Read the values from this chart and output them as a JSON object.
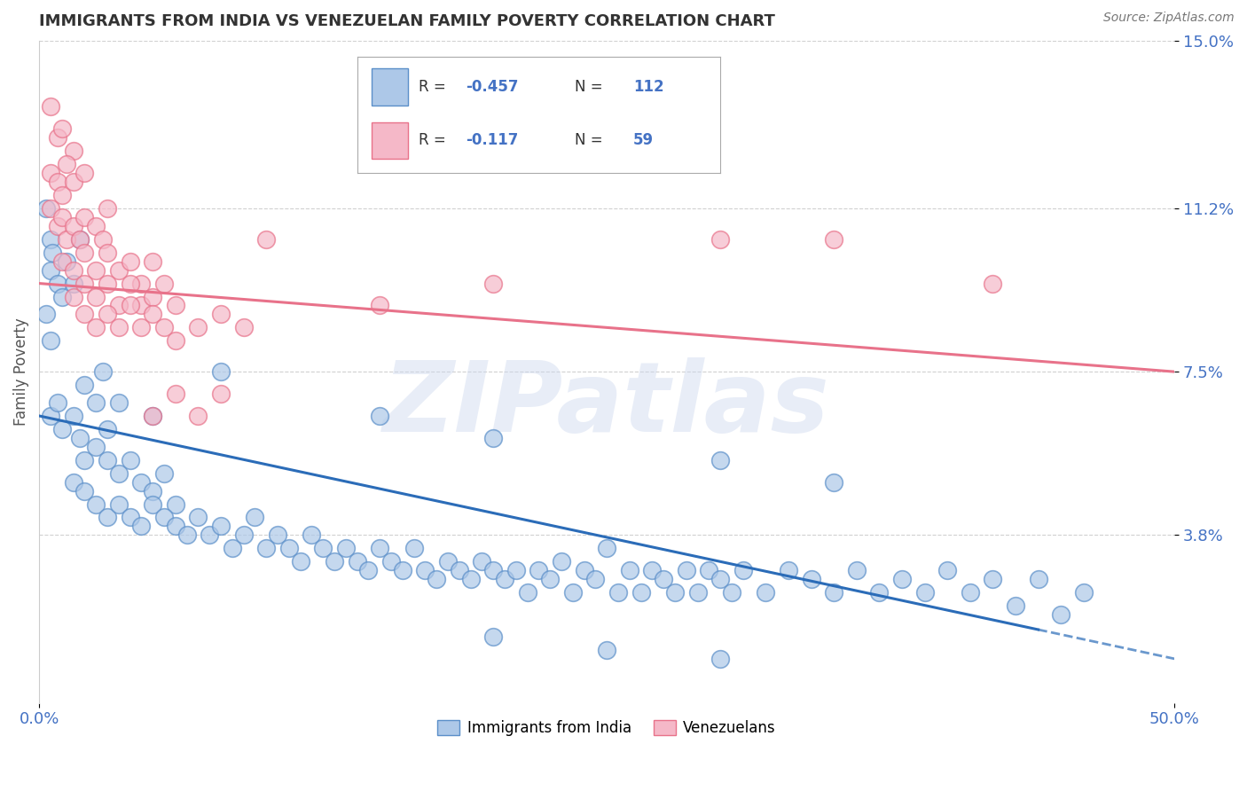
{
  "title": "IMMIGRANTS FROM INDIA VS VENEZUELAN FAMILY POVERTY CORRELATION CHART",
  "source": "Source: ZipAtlas.com",
  "ylabel": "Family Poverty",
  "watermark": "ZIPatlas",
  "xmin": 0.0,
  "xmax": 50.0,
  "ymin": 0.0,
  "ymax": 15.0,
  "yticks": [
    3.8,
    7.5,
    11.2,
    15.0
  ],
  "ytick_labels": [
    "3.8%",
    "7.5%",
    "11.2%",
    "15.0%"
  ],
  "xtick_labels": [
    "0.0%",
    "50.0%"
  ],
  "legend_india": "Immigrants from India",
  "legend_venezuela": "Venezuelans",
  "R_india": "-0.457",
  "N_india": "112",
  "R_venezuela": "-0.117",
  "N_venezuela": "59",
  "color_india_fill": "#adc8e8",
  "color_india_edge": "#5b8fc9",
  "color_venezuela_fill": "#f5b8c8",
  "color_venezuela_edge": "#e8728a",
  "line_color_india": "#2b6cb8",
  "line_color_venezuela": "#e8728a",
  "background_color": "#ffffff",
  "grid_color": "#cccccc",
  "title_color": "#333333",
  "axis_label_color": "#4472c4",
  "india_line_x0": 0.0,
  "india_line_y0": 6.5,
  "india_line_x1": 50.0,
  "india_line_y1": 1.0,
  "india_solid_end": 44.0,
  "venez_line_x0": 0.0,
  "venez_line_y0": 9.5,
  "venez_line_x1": 50.0,
  "venez_line_y1": 7.5,
  "india_points": [
    [
      0.3,
      11.2
    ],
    [
      0.5,
      10.5
    ],
    [
      0.5,
      9.8
    ],
    [
      0.6,
      10.2
    ],
    [
      0.8,
      9.5
    ],
    [
      0.3,
      8.8
    ],
    [
      0.5,
      8.2
    ],
    [
      1.0,
      9.2
    ],
    [
      1.2,
      10.0
    ],
    [
      1.5,
      9.5
    ],
    [
      1.8,
      10.5
    ],
    [
      0.5,
      6.5
    ],
    [
      0.8,
      6.8
    ],
    [
      1.0,
      6.2
    ],
    [
      1.5,
      6.5
    ],
    [
      1.8,
      6.0
    ],
    [
      2.0,
      7.2
    ],
    [
      2.5,
      6.8
    ],
    [
      2.8,
      7.5
    ],
    [
      3.0,
      6.2
    ],
    [
      3.5,
      6.8
    ],
    [
      2.0,
      5.5
    ],
    [
      2.5,
      5.8
    ],
    [
      3.0,
      5.5
    ],
    [
      3.5,
      5.2
    ],
    [
      4.0,
      5.5
    ],
    [
      4.5,
      5.0
    ],
    [
      5.0,
      4.8
    ],
    [
      5.5,
      5.2
    ],
    [
      6.0,
      4.5
    ],
    [
      1.5,
      5.0
    ],
    [
      2.0,
      4.8
    ],
    [
      2.5,
      4.5
    ],
    [
      3.0,
      4.2
    ],
    [
      3.5,
      4.5
    ],
    [
      4.0,
      4.2
    ],
    [
      4.5,
      4.0
    ],
    [
      5.0,
      4.5
    ],
    [
      5.5,
      4.2
    ],
    [
      6.0,
      4.0
    ],
    [
      6.5,
      3.8
    ],
    [
      7.0,
      4.2
    ],
    [
      7.5,
      3.8
    ],
    [
      8.0,
      4.0
    ],
    [
      8.5,
      3.5
    ],
    [
      9.0,
      3.8
    ],
    [
      9.5,
      4.2
    ],
    [
      10.0,
      3.5
    ],
    [
      10.5,
      3.8
    ],
    [
      11.0,
      3.5
    ],
    [
      11.5,
      3.2
    ],
    [
      12.0,
      3.8
    ],
    [
      12.5,
      3.5
    ],
    [
      13.0,
      3.2
    ],
    [
      13.5,
      3.5
    ],
    [
      14.0,
      3.2
    ],
    [
      14.5,
      3.0
    ],
    [
      15.0,
      3.5
    ],
    [
      15.5,
      3.2
    ],
    [
      16.0,
      3.0
    ],
    [
      16.5,
      3.5
    ],
    [
      17.0,
      3.0
    ],
    [
      17.5,
      2.8
    ],
    [
      18.0,
      3.2
    ],
    [
      18.5,
      3.0
    ],
    [
      19.0,
      2.8
    ],
    [
      19.5,
      3.2
    ],
    [
      20.0,
      3.0
    ],
    [
      20.5,
      2.8
    ],
    [
      21.0,
      3.0
    ],
    [
      21.5,
      2.5
    ],
    [
      22.0,
      3.0
    ],
    [
      22.5,
      2.8
    ],
    [
      23.0,
      3.2
    ],
    [
      23.5,
      2.5
    ],
    [
      24.0,
      3.0
    ],
    [
      24.5,
      2.8
    ],
    [
      25.0,
      3.5
    ],
    [
      25.5,
      2.5
    ],
    [
      26.0,
      3.0
    ],
    [
      26.5,
      2.5
    ],
    [
      27.0,
      3.0
    ],
    [
      27.5,
      2.8
    ],
    [
      28.0,
      2.5
    ],
    [
      28.5,
      3.0
    ],
    [
      29.0,
      2.5
    ],
    [
      29.5,
      3.0
    ],
    [
      30.0,
      2.8
    ],
    [
      30.5,
      2.5
    ],
    [
      31.0,
      3.0
    ],
    [
      32.0,
      2.5
    ],
    [
      33.0,
      3.0
    ],
    [
      34.0,
      2.8
    ],
    [
      35.0,
      2.5
    ],
    [
      36.0,
      3.0
    ],
    [
      37.0,
      2.5
    ],
    [
      38.0,
      2.8
    ],
    [
      39.0,
      2.5
    ],
    [
      40.0,
      3.0
    ],
    [
      41.0,
      2.5
    ],
    [
      42.0,
      2.8
    ],
    [
      43.0,
      2.2
    ],
    [
      44.0,
      2.8
    ],
    [
      45.0,
      2.0
    ],
    [
      46.0,
      2.5
    ],
    [
      30.0,
      5.5
    ],
    [
      35.0,
      5.0
    ],
    [
      20.0,
      1.5
    ],
    [
      25.0,
      1.2
    ],
    [
      30.0,
      1.0
    ],
    [
      15.0,
      6.5
    ],
    [
      20.0,
      6.0
    ],
    [
      8.0,
      7.5
    ],
    [
      5.0,
      6.5
    ]
  ],
  "venezuela_points": [
    [
      0.5,
      13.5
    ],
    [
      0.8,
      12.8
    ],
    [
      1.0,
      13.0
    ],
    [
      1.5,
      12.5
    ],
    [
      0.5,
      12.0
    ],
    [
      0.8,
      11.8
    ],
    [
      1.0,
      11.5
    ],
    [
      1.2,
      12.2
    ],
    [
      1.5,
      11.8
    ],
    [
      2.0,
      12.0
    ],
    [
      0.5,
      11.2
    ],
    [
      0.8,
      10.8
    ],
    [
      1.0,
      11.0
    ],
    [
      1.2,
      10.5
    ],
    [
      1.5,
      10.8
    ],
    [
      1.8,
      10.5
    ],
    [
      2.0,
      11.0
    ],
    [
      2.5,
      10.8
    ],
    [
      2.8,
      10.5
    ],
    [
      3.0,
      11.2
    ],
    [
      1.0,
      10.0
    ],
    [
      1.5,
      9.8
    ],
    [
      2.0,
      10.2
    ],
    [
      2.5,
      9.8
    ],
    [
      3.0,
      10.2
    ],
    [
      3.5,
      9.8
    ],
    [
      4.0,
      10.0
    ],
    [
      4.5,
      9.5
    ],
    [
      5.0,
      10.0
    ],
    [
      1.5,
      9.2
    ],
    [
      2.0,
      9.5
    ],
    [
      2.5,
      9.2
    ],
    [
      3.0,
      9.5
    ],
    [
      3.5,
      9.0
    ],
    [
      4.0,
      9.5
    ],
    [
      4.5,
      9.0
    ],
    [
      5.0,
      9.2
    ],
    [
      5.5,
      9.5
    ],
    [
      2.0,
      8.8
    ],
    [
      2.5,
      8.5
    ],
    [
      3.0,
      8.8
    ],
    [
      3.5,
      8.5
    ],
    [
      4.0,
      9.0
    ],
    [
      4.5,
      8.5
    ],
    [
      5.0,
      8.8
    ],
    [
      5.5,
      8.5
    ],
    [
      6.0,
      9.0
    ],
    [
      6.0,
      8.2
    ],
    [
      7.0,
      8.5
    ],
    [
      8.0,
      8.8
    ],
    [
      9.0,
      8.5
    ],
    [
      5.0,
      6.5
    ],
    [
      6.0,
      7.0
    ],
    [
      7.0,
      6.5
    ],
    [
      8.0,
      7.0
    ],
    [
      10.0,
      10.5
    ],
    [
      15.0,
      9.0
    ],
    [
      20.0,
      9.5
    ],
    [
      30.0,
      10.5
    ],
    [
      35.0,
      10.5
    ],
    [
      42.0,
      9.5
    ]
  ]
}
